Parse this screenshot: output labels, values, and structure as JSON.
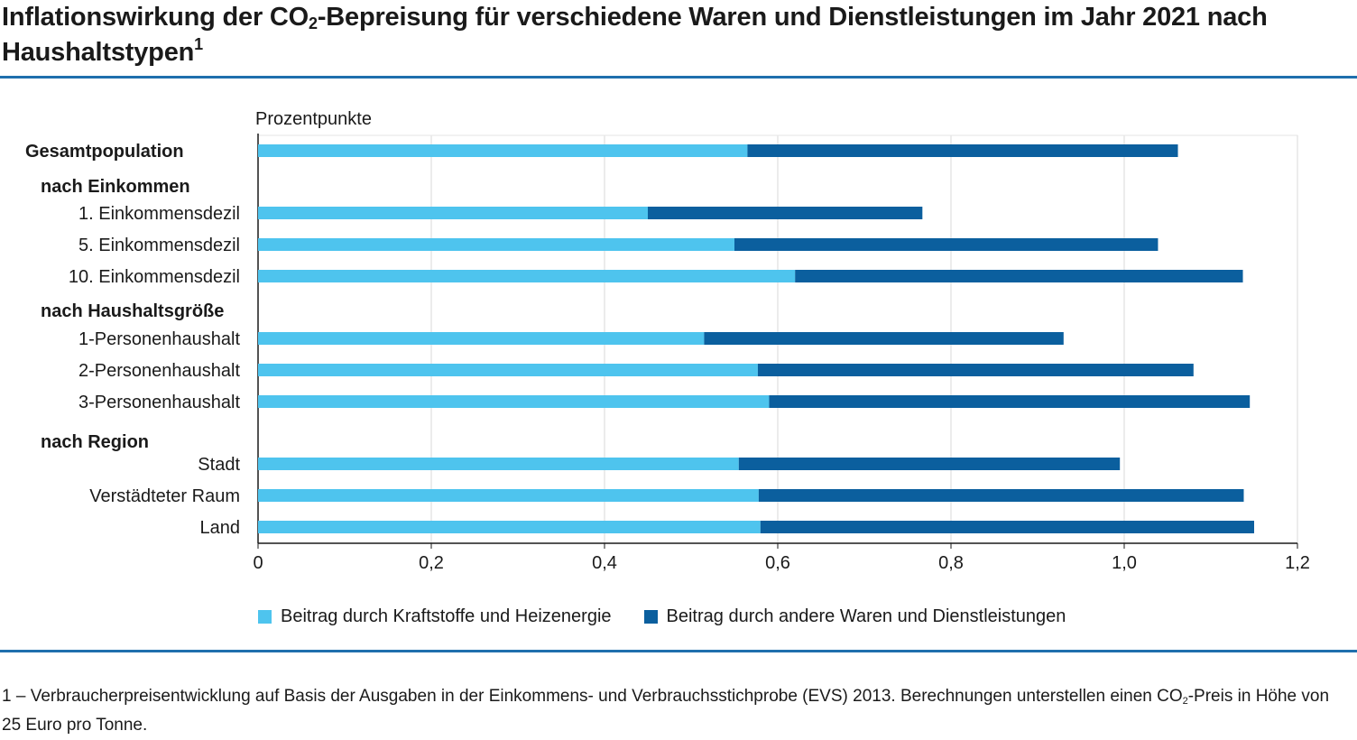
{
  "title": {
    "part1": "Inflationswirkung der CO",
    "sub": "2",
    "part2": "-Bepreisung für verschiedene Waren und Dienstleistungen im Jahr 2021 nach Haushaltstypen",
    "sup": "1"
  },
  "footnote": {
    "part1": "1 – Verbraucherpreisentwicklung auf Basis der Ausgaben in der Einkommens- und Verbrauchsstichprobe (EVS) 2013. Berechnungen unterstellen einen CO",
    "sub": "2",
    "part2": "-Preis in Höhe von 25 Euro pro Tonne."
  },
  "colors": {
    "fuel": "#4ec4ee",
    "other": "#0b5f9e",
    "rule": "#1f6fad",
    "grid": "#e6e6e6"
  },
  "chart_data": {
    "type": "bar",
    "orientation": "horizontal",
    "stacked": true,
    "unit_label": "Prozentpunkte",
    "xlim": [
      0,
      1.2
    ],
    "xticks": [
      0,
      0.2,
      0.4,
      0.6,
      0.8,
      1.0,
      1.2
    ],
    "xtick_labels": [
      "0",
      "0,2",
      "0,4",
      "0,6",
      "0,8",
      "1,0",
      "1,2"
    ],
    "grid": "vertical",
    "legend_position": "bottom",
    "rows": [
      {
        "label": "Gesamtpopulation",
        "kind": "bar",
        "bold": true,
        "values": [
          0.565,
          0.497
        ]
      },
      {
        "label": "nach Einkommen",
        "kind": "group"
      },
      {
        "label": "1. Einkommensdezil",
        "kind": "bar",
        "values": [
          0.45,
          0.317
        ]
      },
      {
        "label": "5. Einkommensdezil",
        "kind": "bar",
        "values": [
          0.55,
          0.489
        ]
      },
      {
        "label": "10. Einkommensdezil",
        "kind": "bar",
        "values": [
          0.62,
          0.517
        ]
      },
      {
        "label": "nach Haushaltsgröße",
        "kind": "group"
      },
      {
        "label": "1-Personenhaushalt",
        "kind": "bar",
        "values": [
          0.515,
          0.415
        ]
      },
      {
        "label": "2-Personenhaushalt",
        "kind": "bar",
        "values": [
          0.577,
          0.503
        ]
      },
      {
        "label": "3-Personenhaushalt",
        "kind": "bar",
        "values": [
          0.59,
          0.555
        ]
      },
      {
        "label": "nach Region",
        "kind": "group"
      },
      {
        "label": "Stadt",
        "kind": "bar",
        "values": [
          0.555,
          0.44
        ]
      },
      {
        "label": "Verstädteter Raum",
        "kind": "bar",
        "values": [
          0.578,
          0.56
        ]
      },
      {
        "label": "Land",
        "kind": "bar",
        "values": [
          0.58,
          0.57
        ]
      }
    ],
    "series": [
      {
        "name": "Beitrag durch Kraftstoffe und Heizenergie"
      },
      {
        "name": "Beitrag durch andere Waren und Dienstleistungen"
      }
    ]
  }
}
